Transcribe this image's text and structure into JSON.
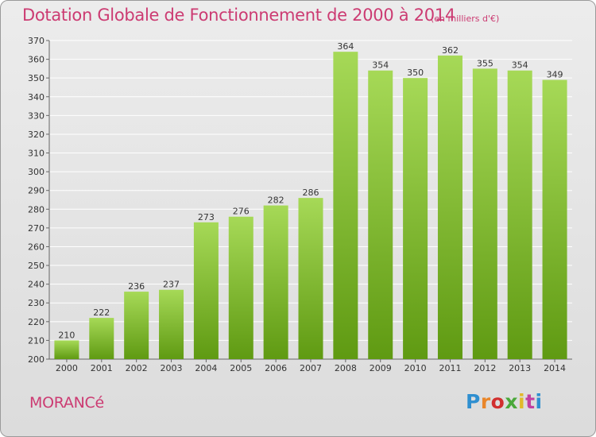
{
  "header": {
    "title": "Dotation Globale de Fonctionnement de 2000 à 2014",
    "subtitle": "(en milliers d'€)"
  },
  "footer": {
    "commune": "MORANCé",
    "logo_letters": [
      "P",
      "r",
      "o",
      "x",
      "i",
      "t",
      "i"
    ]
  },
  "colors": {
    "title": "#cc3b72",
    "bar_top": "#a6d957",
    "bar_bottom": "#5f9a12",
    "grid": "#ffffff"
  },
  "chart_data": {
    "type": "bar",
    "title": "Dotation Globale de Fonctionnement de 2000 à 2014",
    "subtitle": "(en milliers d'€)",
    "categories": [
      "2000",
      "2001",
      "2002",
      "2003",
      "2004",
      "2005",
      "2006",
      "2007",
      "2008",
      "2009",
      "2010",
      "2011",
      "2012",
      "2013",
      "2014"
    ],
    "values": [
      210,
      222,
      236,
      237,
      273,
      276,
      282,
      286,
      364,
      354,
      350,
      362,
      355,
      354,
      349
    ],
    "ylim": [
      200,
      370
    ],
    "yticks": [
      200,
      210,
      220,
      230,
      240,
      250,
      260,
      270,
      280,
      290,
      300,
      310,
      320,
      330,
      340,
      350,
      360,
      370
    ],
    "grid": true,
    "data_labels": true
  }
}
